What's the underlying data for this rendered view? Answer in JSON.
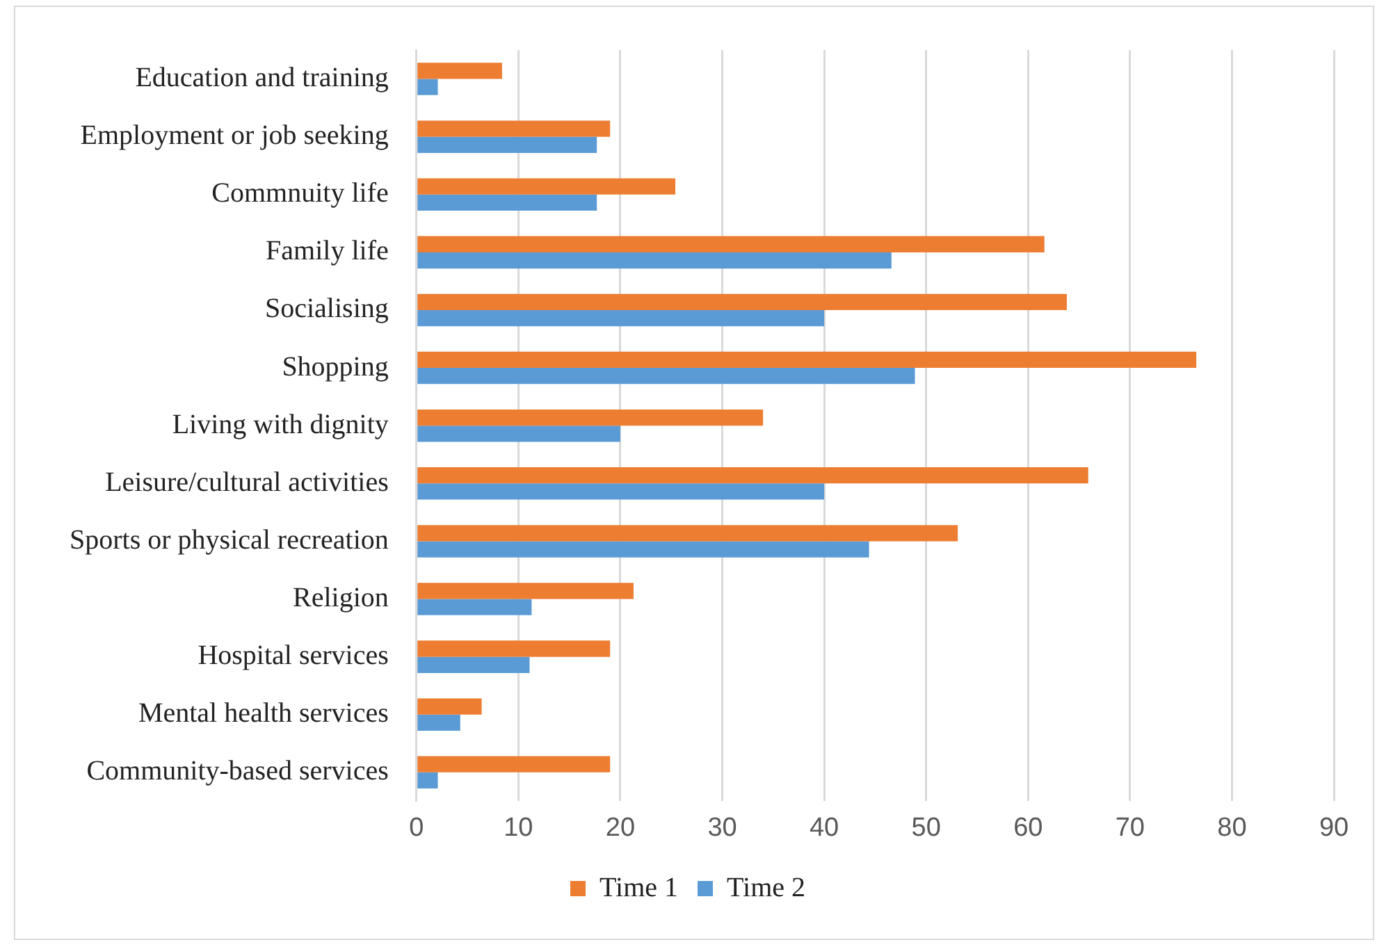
{
  "chart_data": {
    "type": "bar",
    "orientation": "horizontal",
    "categories": [
      "Education and training",
      "Employment or job seeking",
      "Commnuity life",
      "Family life",
      "Socialising",
      "Shopping",
      "Living with dignity",
      "Leisure/cultural activities",
      "Sports or physical recreation",
      "Religion",
      "Hospital services",
      "Mental health services",
      "Community-based services"
    ],
    "series": [
      {
        "name": "Time 1",
        "color": "#ed7d31",
        "values": [
          8.4,
          19,
          25.4,
          61.6,
          63.8,
          76.5,
          34,
          65.9,
          53.1,
          21.3,
          19,
          6.4,
          19
        ]
      },
      {
        "name": "Time 2",
        "color": "#5b9bd5",
        "values": [
          2.1,
          17.7,
          17.7,
          46.6,
          40,
          48.9,
          20,
          40,
          44.4,
          11.3,
          11.1,
          4.3,
          2.1
        ]
      }
    ],
    "xlim": [
      0,
      90
    ],
    "xticks": [
      0,
      10,
      20,
      30,
      40,
      50,
      60,
      70,
      80,
      90
    ],
    "grid": "x",
    "legend": "bottom"
  }
}
